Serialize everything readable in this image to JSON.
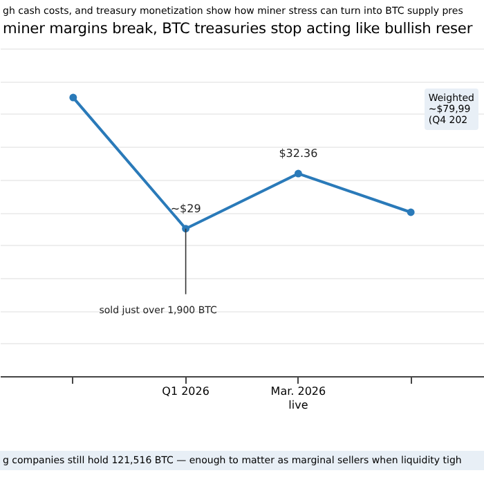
{
  "chart_data": {
    "type": "line",
    "ylim": [
      20,
      40
    ],
    "subtitle": "gh cash costs, and treasury monetization show how miner stress can turn into BTC supply pres",
    "title": "miner margins break, BTC treasuries stop acting like bullish reser",
    "categories": [
      null,
      "Q1 2026",
      "Mar. 2026\nlive",
      null
    ],
    "series": [
      {
        "color": "#2a7ab9",
        "values": [
          37,
          29,
          32.36,
          30
        ],
        "value_labels": [
          null,
          "~$29",
          "$32.36",
          null
        ]
      }
    ],
    "marker": "circle",
    "grid": "y",
    "tick_labels": "x",
    "annotations": [
      {
        "text": "sold just over 1,900 BTC",
        "x": "Q1 2026",
        "y": 29
      },
      "Weighted\n~$79,99\n(Q4 202",
      "g companies still hold 121,516 BTC — enough to matter as marginal sellers when liquidity tigh"
    ]
  }
}
